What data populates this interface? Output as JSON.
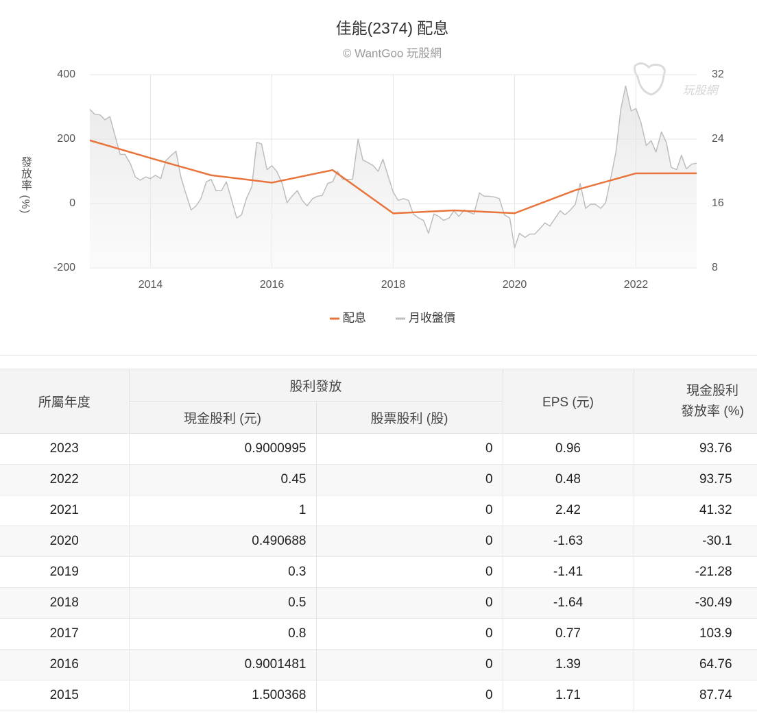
{
  "chart_data": {
    "type": "line",
    "title": "佳能(2374) 配息",
    "subtitle": "© WantGoo 玩股網",
    "watermark": "玩股網",
    "y_label": "發放率 (%)",
    "xlim": [
      2013,
      2023
    ],
    "xticks": [
      2014,
      2016,
      2018,
      2020,
      2022
    ],
    "ylim": [
      -200,
      400
    ],
    "yticks": [
      -200,
      0,
      200,
      400
    ],
    "y2lim": [
      8,
      32
    ],
    "y2ticks": [
      8,
      16,
      24,
      32
    ],
    "grid": true,
    "legend": "bottom",
    "series": [
      {
        "name": "配息",
        "color": "#e8743b",
        "x": [
          2013,
          2014,
          2015,
          2016,
          2017,
          2018,
          2019,
          2020,
          2021,
          2022,
          2023
        ],
        "values": [
          196,
          141,
          87.74,
          64.76,
          103.9,
          -30.49,
          -21.28,
          -30.1,
          41.32,
          93.75,
          93.76
        ]
      },
      {
        "name": "月收盤價",
        "color": "#bdbdbd",
        "axis": "y2",
        "x": [
          2013,
          2013.08,
          2013.17,
          2013.25,
          2013.33,
          2013.42,
          2013.5,
          2013.58,
          2013.67,
          2013.75,
          2013.83,
          2013.92,
          2014,
          2014.08,
          2014.17,
          2014.25,
          2014.33,
          2014.42,
          2014.5,
          2014.58,
          2014.67,
          2014.75,
          2014.83,
          2014.92,
          2015,
          2015.08,
          2015.17,
          2015.25,
          2015.33,
          2015.42,
          2015.5,
          2015.58,
          2015.67,
          2015.75,
          2015.83,
          2015.92,
          2016,
          2016.08,
          2016.17,
          2016.25,
          2016.33,
          2016.42,
          2016.5,
          2016.58,
          2016.67,
          2016.75,
          2016.83,
          2016.92,
          2017,
          2017.08,
          2017.17,
          2017.25,
          2017.33,
          2017.42,
          2017.5,
          2017.58,
          2017.67,
          2017.75,
          2017.83,
          2017.92,
          2018,
          2018.08,
          2018.17,
          2018.25,
          2018.33,
          2018.42,
          2018.5,
          2018.58,
          2018.67,
          2018.75,
          2018.83,
          2018.92,
          2019,
          2019.08,
          2019.17,
          2019.25,
          2019.33,
          2019.42,
          2019.5,
          2019.58,
          2019.67,
          2019.75,
          2019.83,
          2019.92,
          2020,
          2020.08,
          2020.17,
          2020.25,
          2020.33,
          2020.42,
          2020.5,
          2020.58,
          2020.67,
          2020.75,
          2020.83,
          2020.92,
          2021,
          2021.08,
          2021.17,
          2021.25,
          2021.33,
          2021.42,
          2021.5,
          2021.58,
          2021.67,
          2021.75,
          2021.83,
          2021.92,
          2022,
          2022.08,
          2022.17,
          2022.25,
          2022.33,
          2022.42,
          2022.5,
          2022.58,
          2022.67,
          2022.75,
          2022.83,
          2022.92,
          2023
        ],
        "values": [
          27.7,
          27.1,
          27.0,
          26.4,
          26.8,
          24.3,
          22.1,
          22.1,
          20.9,
          19.3,
          18.9,
          19.3,
          19.1,
          19.5,
          19.1,
          21.3,
          21.9,
          22.5,
          19.3,
          17.3,
          15.2,
          15.7,
          16.6,
          18.7,
          19.0,
          17.6,
          17.6,
          18.7,
          16.6,
          14.2,
          14.6,
          16.6,
          18.1,
          23.6,
          23.4,
          20.2,
          20.7,
          20.0,
          18.5,
          16.1,
          16.9,
          17.6,
          16.4,
          15.7,
          16.6,
          16.9,
          17.0,
          18.5,
          18.7,
          20.0,
          19.0,
          19.0,
          19.0,
          24.0,
          21.4,
          21.1,
          20.7,
          20.0,
          21.5,
          19.3,
          17.4,
          16.4,
          16.6,
          16.4,
          14.7,
          14.2,
          13.9,
          12.3,
          14.7,
          14.4,
          13.9,
          14.2,
          15.1,
          14.4,
          15.2,
          14.9,
          14.7,
          17.3,
          16.9,
          16.9,
          16.8,
          16.6,
          14.6,
          14.2,
          10.5,
          12.3,
          11.8,
          12.2,
          12.2,
          12.9,
          13.6,
          13.2,
          14.2,
          15.1,
          14.6,
          15.2,
          15.9,
          18.5,
          15.4,
          15.9,
          15.9,
          15.4,
          16.1,
          19.0,
          22.4,
          27.7,
          30.6,
          27.5,
          27.8,
          26.1,
          23.2,
          23.8,
          22.4,
          24.9,
          23.6,
          20.5,
          20.2,
          22.0,
          20.3,
          20.9,
          21.0
        ]
      }
    ]
  },
  "table": {
    "group_header": "股利發放",
    "headers": [
      "所屬年度",
      "現金股利 (元)",
      "股票股利 (股)",
      "EPS (元)",
      [
        "現金股利",
        "發放率 (%)"
      ]
    ],
    "rows": [
      [
        "2023",
        "0.9000995",
        "0",
        "0.96",
        "93.76"
      ],
      [
        "2022",
        "0.45",
        "0",
        "0.48",
        "93.75"
      ],
      [
        "2021",
        "1",
        "0",
        "2.42",
        "41.32"
      ],
      [
        "2020",
        "0.490688",
        "0",
        "-1.63",
        "-30.1"
      ],
      [
        "2019",
        "0.3",
        "0",
        "-1.41",
        "-21.28"
      ],
      [
        "2018",
        "0.5",
        "0",
        "-1.64",
        "-30.49"
      ],
      [
        "2017",
        "0.8",
        "0",
        "0.77",
        "103.9"
      ],
      [
        "2016",
        "0.9001481",
        "0",
        "1.39",
        "64.76"
      ],
      [
        "2015",
        "1.500368",
        "0",
        "1.71",
        "87.74"
      ]
    ]
  }
}
